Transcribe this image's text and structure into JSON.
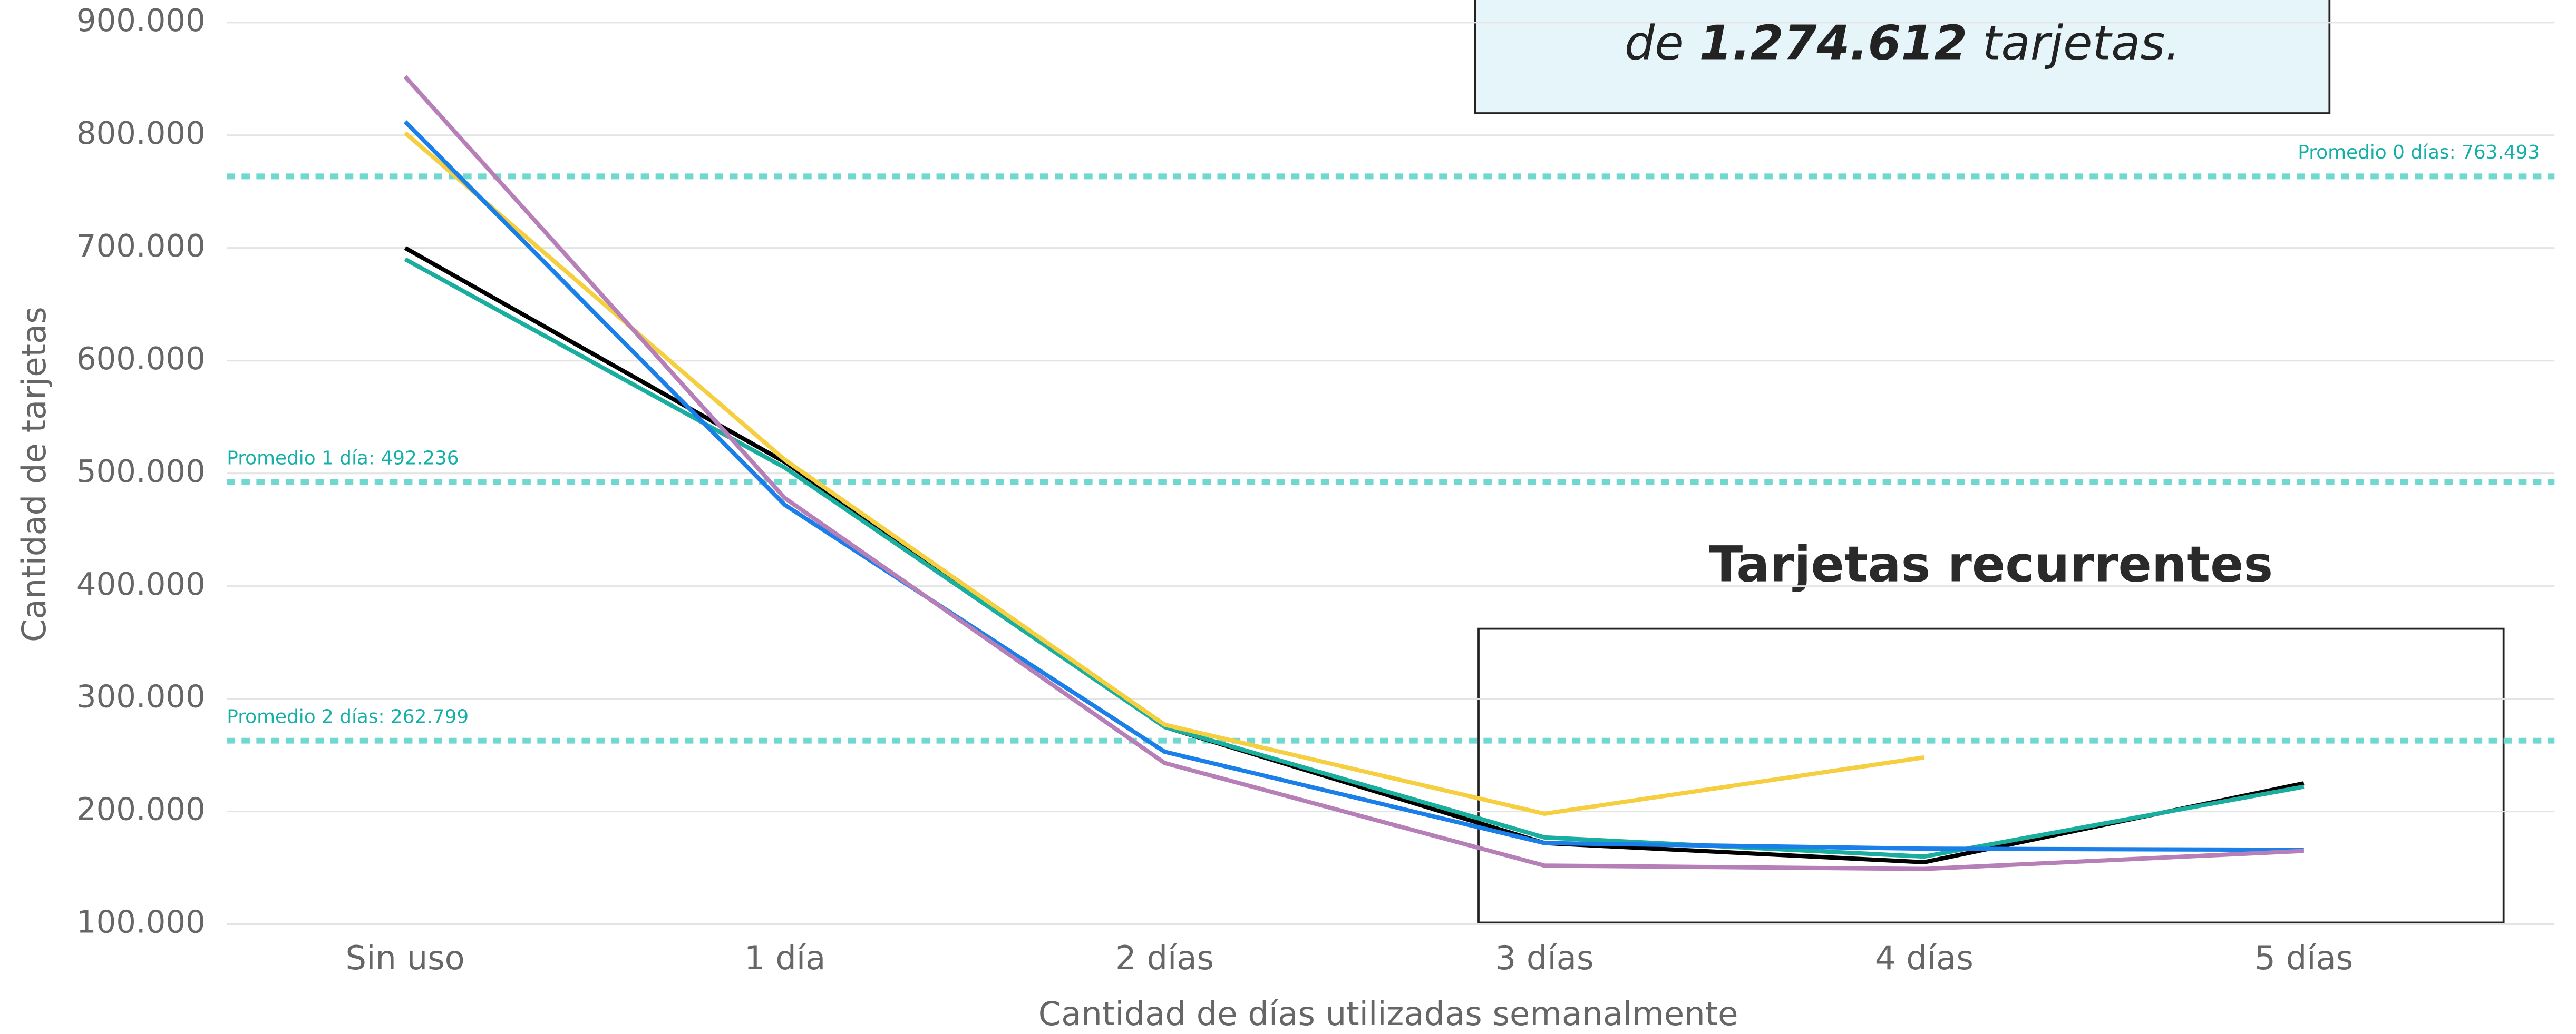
{
  "chart_data": {
    "type": "line",
    "ylabel": "Cantidad de tarjetas",
    "xlabel": "Cantidad de días utilizadas semanalmente",
    "categories": [
      "Sin uso",
      "1 día",
      "2 días",
      "3 días",
      "4 días",
      "5 días"
    ],
    "series": [
      {
        "color": "#000000",
        "values": [
          700000,
          510000,
          275000,
          172000,
          155000,
          225000
        ]
      },
      {
        "color": "#1aae9f",
        "values": [
          690000,
          505000,
          275000,
          177000,
          160000,
          222000
        ]
      },
      {
        "color": "#f5cf3f",
        "values": [
          802000,
          512000,
          277000,
          198000,
          248000,
          null
        ]
      },
      {
        "color": "#1a7fe8",
        "values": [
          812000,
          472000,
          253000,
          172000,
          167000,
          166000
        ]
      },
      {
        "color": "#b67fb8",
        "values": [
          852000,
          478000,
          243000,
          152000,
          149000,
          165000
        ]
      }
    ],
    "ylim": [
      100000,
      920000
    ],
    "yticks": [
      {
        "value": 100000,
        "label": "100.000"
      },
      {
        "value": 200000,
        "label": "200.000"
      },
      {
        "value": 300000,
        "label": "300.000"
      },
      {
        "value": 400000,
        "label": "400.000"
      },
      {
        "value": 500000,
        "label": "500.000"
      },
      {
        "value": 600000,
        "label": "600.000"
      },
      {
        "value": 700000,
        "label": "700.000"
      },
      {
        "value": 800000,
        "label": "800.000"
      },
      {
        "value": 900000,
        "label": "900.000"
      }
    ],
    "grid": true,
    "reference_lines": [
      {
        "value": 763493,
        "label": "Promedio 0 días: 763.493",
        "color": "#6fd8d0"
      },
      {
        "value": 492236,
        "label": "Promedio 1 día: 492.236",
        "color": "#6fd8d0"
      },
      {
        "value": 262799,
        "label": "Promedio 2 días: 262.799",
        "color": "#6fd8d0"
      }
    ],
    "annotation": {
      "parts": [
        "de ",
        "1.274.612",
        " tarjetas."
      ]
    },
    "highlight_title": "Tarjetas recurrentes"
  }
}
